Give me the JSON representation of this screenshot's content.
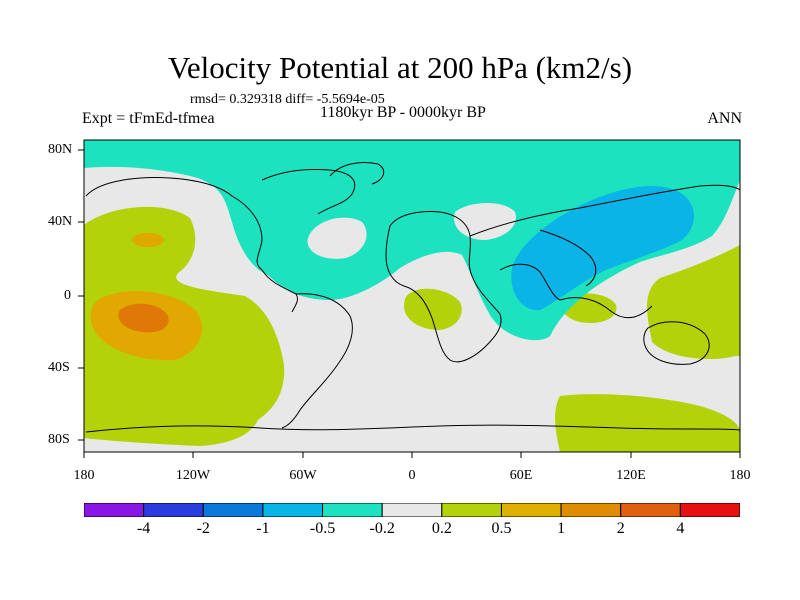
{
  "title": "Velocity Potential at 200 hPa (km2/s)",
  "stats_line": "rmsd= 0.329318 diff= -5.5694e-05",
  "experiment": "Expt = tFmEd-tfmea",
  "period": "1180kyr BP - 0000kyr BP",
  "season": "ANN",
  "colors": {
    "ocean_background": "#e8e8e8",
    "contour_neg_0_5_to_0_2": "#1de2c0",
    "contour_neg_1_to_0_5": "#0ab4e6",
    "contour_0_2_to_0_5": "#b4d20a",
    "contour_0_5_to_1": "#e0a800",
    "contour_1_to_2": "#e07808"
  },
  "map": {
    "projection": "cylindrical-equidistant",
    "lon_ticks": [
      "180",
      "120W",
      "60W",
      "0",
      "60E",
      "120E",
      "180"
    ],
    "lat_ticks": [
      "80N",
      "40N",
      "0",
      "40S",
      "80S"
    ]
  },
  "colorbar": {
    "boxes": [
      {
        "color": "#8a16e6"
      },
      {
        "color": "#2a3ce0"
      },
      {
        "color": "#0c78dc"
      },
      {
        "color": "#0ab4e6"
      },
      {
        "color": "#1de2c0"
      },
      {
        "color": "#e8e8e8"
      },
      {
        "color": "#b4d20a"
      },
      {
        "color": "#e0b000"
      },
      {
        "color": "#e08c00"
      },
      {
        "color": "#e06010"
      },
      {
        "color": "#e61010"
      }
    ],
    "labels": [
      "-4",
      "-2",
      "-1",
      "-0.5",
      "-0.2",
      "0.2",
      "0.5",
      "1",
      "2",
      "4"
    ]
  }
}
